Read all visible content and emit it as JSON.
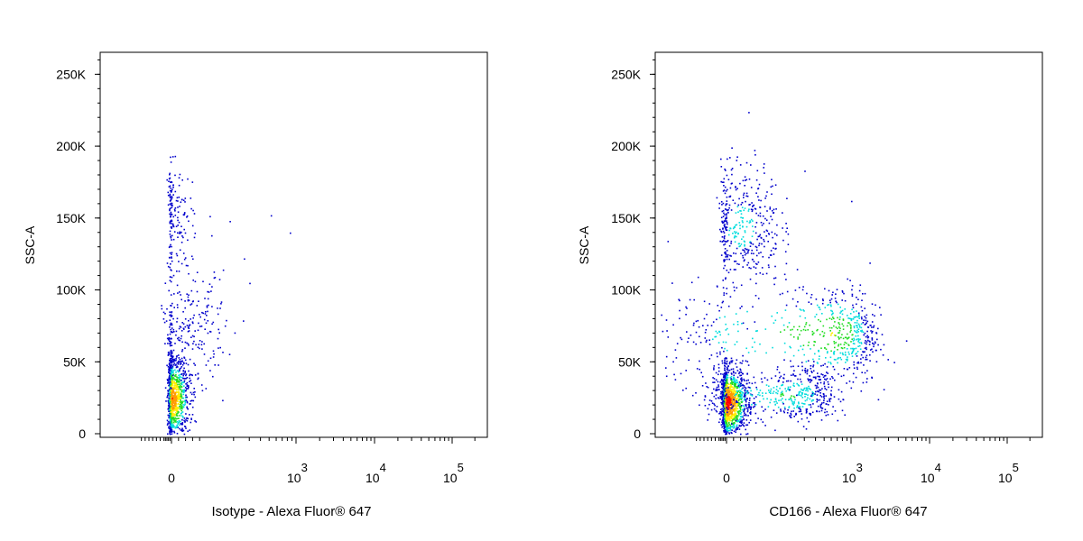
{
  "chart_data": [
    {
      "type": "scatter",
      "title": "",
      "xlabel": "Isotype - Alexa Fluor® 647",
      "ylabel": "SSC-A",
      "x_scale": "biexponential",
      "x_ticks": [
        {
          "v": 0,
          "base": "0",
          "exp": ""
        },
        {
          "v": 1000,
          "base": "10",
          "exp": "3"
        },
        {
          "v": 10000,
          "base": "10",
          "exp": "4"
        },
        {
          "v": 100000,
          "base": "10",
          "exp": "5"
        }
      ],
      "y_ticks": [
        {
          "v": 0,
          "label": "0"
        },
        {
          "v": 50000,
          "label": "50K"
        },
        {
          "v": 100000,
          "label": "100K"
        },
        {
          "v": 150000,
          "label": "150K"
        },
        {
          "v": 200000,
          "label": "200K"
        },
        {
          "v": 250000,
          "label": "250K"
        }
      ],
      "ylim": [
        0,
        262144
      ],
      "grid": false,
      "colormap": "density (blue → cyan → green → yellow → red)",
      "populations": [
        {
          "x": 0,
          "x_spread": 25,
          "y": 25000,
          "y_spread": 14000,
          "count": 1100
        },
        {
          "x": 40,
          "x_spread": 60,
          "y": 72000,
          "y_spread": 20000,
          "count": 260
        },
        {
          "x": 0,
          "x_spread": 30,
          "y": 150000,
          "y_spread": 18000,
          "count": 170
        }
      ],
      "outliers": [
        [
          520,
          152000
        ],
        [
          850,
          140000
        ],
        [
          300,
          105000
        ],
        [
          180,
          148000
        ],
        [
          260,
          122000
        ]
      ]
    },
    {
      "type": "scatter",
      "title": "",
      "xlabel": "CD166 - Alexa Fluor® 647",
      "ylabel": "SSC-A",
      "x_scale": "biexponential",
      "x_ticks": [
        {
          "v": 0,
          "base": "0",
          "exp": ""
        },
        {
          "v": 1000,
          "base": "10",
          "exp": "3"
        },
        {
          "v": 10000,
          "base": "10",
          "exp": "4"
        },
        {
          "v": 100000,
          "base": "10",
          "exp": "5"
        }
      ],
      "y_ticks": [
        {
          "v": 0,
          "label": "0"
        },
        {
          "v": 50000,
          "label": "50K"
        },
        {
          "v": 100000,
          "label": "100K"
        },
        {
          "v": 150000,
          "label": "150K"
        },
        {
          "v": 200000,
          "label": "200K"
        },
        {
          "v": 250000,
          "label": "250K"
        }
      ],
      "ylim": [
        0,
        262144
      ],
      "grid": false,
      "colormap": "density (blue → cyan → green → yellow → red)",
      "populations": [
        {
          "x": 0,
          "x_spread": 30,
          "y": 22000,
          "y_spread": 12000,
          "count": 1300
        },
        {
          "x": 200,
          "x_spread": 150,
          "y": 27000,
          "y_spread": 10000,
          "count": 500
        },
        {
          "x": 600,
          "x_spread": 500,
          "y": 70000,
          "y_spread": 18000,
          "count": 650
        },
        {
          "x": 40,
          "x_spread": 60,
          "y": 145000,
          "y_spread": 22000,
          "count": 420
        }
      ],
      "outliers": [
        [
          3500,
          50000
        ],
        [
          1000,
          162000
        ],
        [
          5000,
          65000
        ],
        [
          2000,
          90000
        ],
        [
          300,
          183000
        ]
      ]
    }
  ]
}
